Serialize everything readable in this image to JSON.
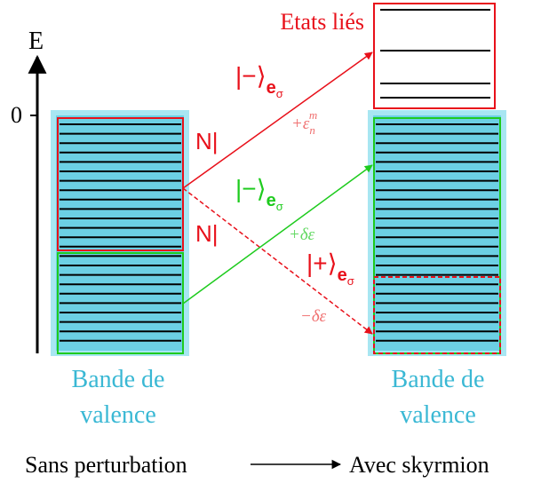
{
  "axis": {
    "label": "E",
    "zero": "0"
  },
  "bound_states": {
    "label": "Etats liés"
  },
  "bands": [
    {
      "label_lines": [
        "Bande de",
        "valence"
      ]
    },
    {
      "label_lines": [
        "Bande de",
        "valence"
      ]
    }
  ],
  "couplings": [
    "N|",
    "N|"
  ],
  "transitions": [
    {
      "ket": "|−⟩",
      "sub": "e",
      "subsub": "σ",
      "energy": "+ε",
      "energy_sub": "n",
      "energy_sup": "m"
    },
    {
      "ket": "|−⟩",
      "sub": "e",
      "subsub": "σ",
      "energy": "+δε"
    },
    {
      "ket": "|+⟩",
      "sub": "e",
      "subsub": "σ",
      "energy": "−δε"
    }
  ],
  "footer": {
    "left": "Sans perturbation",
    "right": "Avec skyrmion"
  }
}
